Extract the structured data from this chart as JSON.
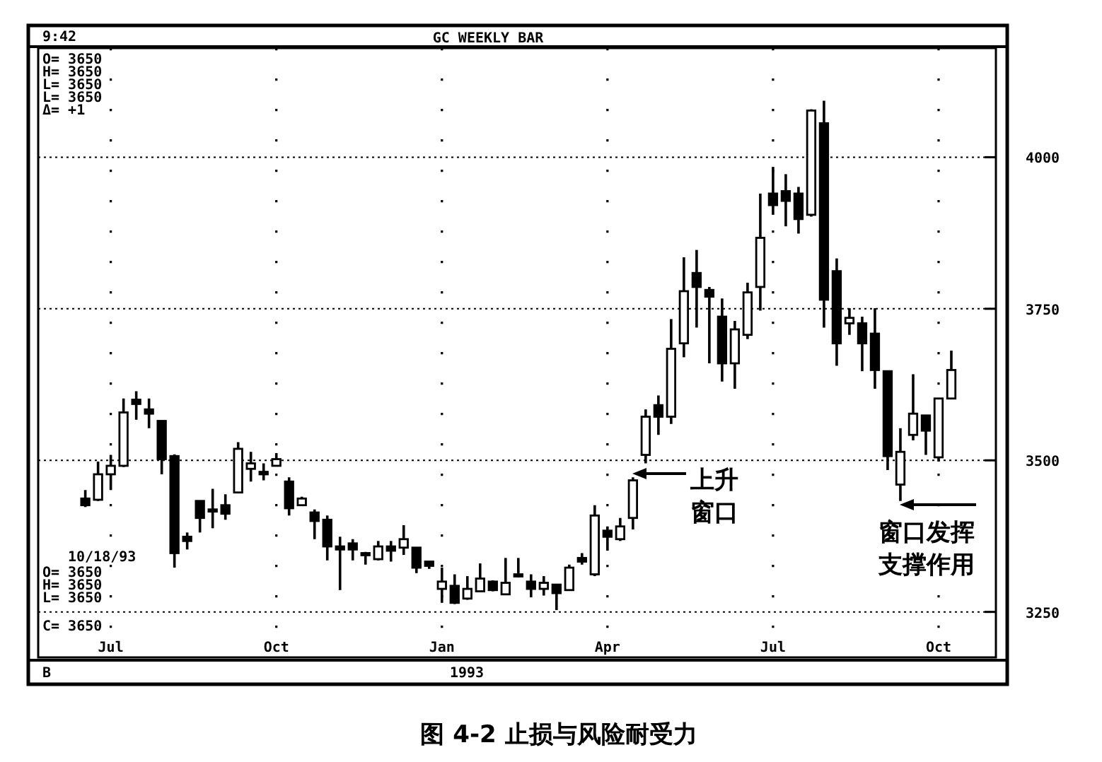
{
  "chart_data": {
    "type": "candlestick",
    "title": "GC WEEKLY BAR",
    "categories": [
      null,
      null,
      "Jul",
      null,
      null,
      null,
      null,
      null,
      null,
      null,
      null,
      null,
      null,
      null,
      null,
      "Oct",
      null,
      null,
      null,
      null,
      null,
      null,
      null,
      null,
      null,
      null,
      null,
      null,
      "Jan",
      null,
      null,
      null,
      null,
      null,
      null,
      null,
      null,
      null,
      null,
      null,
      null,
      "Apr",
      null,
      null,
      null,
      null,
      null,
      null,
      null,
      null,
      null,
      null,
      null,
      null,
      "Jul",
      null,
      null,
      null,
      null,
      null,
      null,
      null,
      null,
      null,
      null,
      null,
      null,
      "Oct",
      null
    ],
    "ohlc": [
      [
        3437,
        3451,
        3423,
        3426
      ],
      [
        3435,
        3498,
        3433,
        3477
      ],
      [
        3477,
        3509,
        3451,
        3491
      ],
      [
        3491,
        3602,
        3489,
        3579
      ],
      [
        3600,
        3614,
        3567,
        3593
      ],
      [
        3584,
        3602,
        3553,
        3577
      ],
      [
        3565,
        3565,
        3477,
        3502
      ],
      [
        3507,
        3510,
        3323,
        3347
      ],
      [
        3374,
        3381,
        3353,
        3367
      ],
      [
        3433,
        3433,
        3381,
        3405
      ],
      [
        3419,
        3453,
        3388,
        3416
      ],
      [
        3426,
        3444,
        3402,
        3412
      ],
      [
        3447,
        3530,
        3447,
        3519
      ],
      [
        3486,
        3514,
        3465,
        3495
      ],
      [
        3481,
        3495,
        3467,
        3477
      ],
      [
        3491,
        3512,
        3491,
        3502
      ],
      [
        3465,
        3472,
        3409,
        3421
      ],
      [
        3426,
        3440,
        3426,
        3437
      ],
      [
        3414,
        3419,
        3370,
        3400
      ],
      [
        3402,
        3409,
        3335,
        3358
      ],
      [
        3358,
        3374,
        3286,
        3353
      ],
      [
        3363,
        3370,
        3335,
        3353
      ],
      [
        3347,
        3349,
        3328,
        3344
      ],
      [
        3337,
        3367,
        3335,
        3358
      ],
      [
        3358,
        3367,
        3333,
        3351
      ],
      [
        3356,
        3393,
        3344,
        3370
      ],
      [
        3356,
        3356,
        3314,
        3323
      ],
      [
        3333,
        3333,
        3321,
        3326
      ],
      [
        3288,
        3323,
        3265,
        3300
      ],
      [
        3293,
        3312,
        3263,
        3265
      ],
      [
        3272,
        3309,
        3270,
        3288
      ],
      [
        3284,
        3330,
        3284,
        3305
      ],
      [
        3300,
        3302,
        3284,
        3286
      ],
      [
        3279,
        3339,
        3279,
        3298
      ],
      [
        3312,
        3339,
        3307,
        3309
      ],
      [
        3300,
        3312,
        3274,
        3288
      ],
      [
        3288,
        3309,
        3277,
        3298
      ],
      [
        3295,
        3295,
        3253,
        3281
      ],
      [
        3286,
        3328,
        3286,
        3323
      ],
      [
        3339,
        3347,
        3328,
        3333
      ],
      [
        3312,
        3426,
        3309,
        3409
      ],
      [
        3384,
        3391,
        3351,
        3374
      ],
      [
        3370,
        3405,
        3367,
        3391
      ],
      [
        3405,
        3472,
        3386,
        3467
      ],
      [
        3509,
        3584,
        3495,
        3572
      ],
      [
        3591,
        3607,
        3542,
        3572
      ],
      [
        3572,
        3733,
        3560,
        3684
      ],
      [
        3693,
        3835,
        3670,
        3779
      ],
      [
        3809,
        3847,
        3719,
        3786
      ],
      [
        3781,
        3786,
        3660,
        3770
      ],
      [
        3737,
        3767,
        3630,
        3660
      ],
      [
        3660,
        3730,
        3618,
        3716
      ],
      [
        3707,
        3793,
        3700,
        3777
      ],
      [
        3786,
        3940,
        3747,
        3867
      ],
      [
        3940,
        3984,
        3905,
        3921
      ],
      [
        3944,
        3972,
        3886,
        3928
      ],
      [
        3940,
        3951,
        3874,
        3898
      ],
      [
        3905,
        4079,
        3902,
        4077
      ],
      [
        4056,
        4093,
        3719,
        3765
      ],
      [
        3812,
        3833,
        3656,
        3693
      ],
      [
        3726,
        3751,
        3707,
        3735
      ],
      [
        3726,
        3737,
        3647,
        3693
      ],
      [
        3709,
        3751,
        3618,
        3649
      ],
      [
        3647,
        3647,
        3484,
        3507
      ],
      [
        3460,
        3553,
        3433,
        3514
      ],
      [
        3542,
        3642,
        3533,
        3577
      ],
      [
        3574,
        3574,
        3509,
        3549
      ],
      [
        3505,
        3602,
        3498,
        3602
      ],
      [
        3602,
        3681,
        3602,
        3649
      ]
    ],
    "ylim": [
      3175,
      4180
    ],
    "yticks": [
      3250,
      3500,
      3750,
      4000
    ],
    "grid": true,
    "annotations": [
      "9:42",
      "O=  3650",
      "H=  3650",
      "L=  3650",
      "L=  3650",
      "Δ=    +1",
      "10/18/93",
      "O=  3650",
      "H=  3650",
      "L=  3650",
      "C=  3650",
      "B",
      "1993",
      "上升窗口",
      "窗口发挥支撑作用",
      "图 4-2    止损与风险耐受力"
    ]
  }
}
